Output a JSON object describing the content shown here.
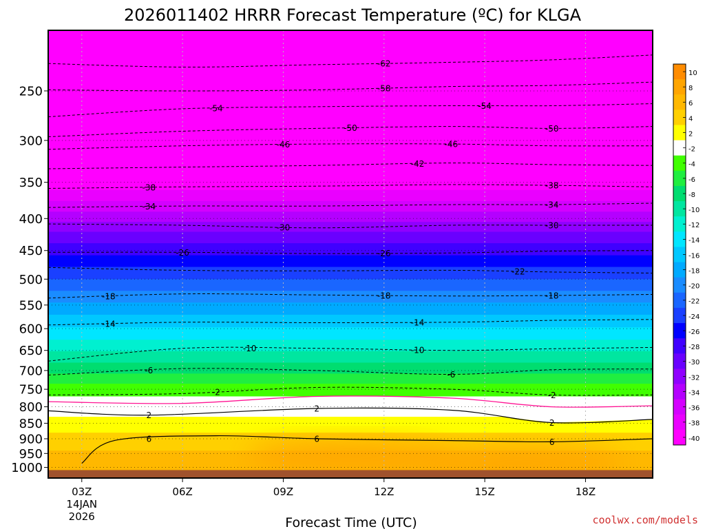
{
  "chart_data": {
    "type": "heatmap",
    "title": "2026011402 HRRR Forecast Temperature (ºC) for KLGA",
    "xlabel": "Forecast Time (UTC)",
    "ylabel": "",
    "credit": "coolwx.com/models",
    "x_ticks": [
      {
        "hour": 3,
        "lines": [
          "03Z",
          "14JAN",
          "2026"
        ]
      },
      {
        "hour": 6,
        "lines": [
          "06Z"
        ]
      },
      {
        "hour": 9,
        "lines": [
          "09Z"
        ]
      },
      {
        "hour": 12,
        "lines": [
          "12Z"
        ]
      },
      {
        "hour": 15,
        "lines": [
          "15Z"
        ]
      },
      {
        "hour": 18,
        "lines": [
          "18Z"
        ]
      }
    ],
    "xlim": [
      2,
      20
    ],
    "y_scale": "log",
    "ylim": [
      1040,
      200
    ],
    "y_ticks": [
      250,
      300,
      350,
      400,
      450,
      500,
      550,
      600,
      650,
      700,
      750,
      800,
      850,
      900,
      950,
      1000
    ],
    "ground_pressure": 1010,
    "colorbar": {
      "ticks": [
        "10",
        "8",
        "6",
        "4",
        "2",
        "-2",
        "-4",
        "-6",
        "-8",
        "-10",
        "-12",
        "-14",
        "-16",
        "-18",
        "-20",
        "-22",
        "-24",
        "-26",
        "-28",
        "-30",
        "-32",
        "-34",
        "-36",
        "-38",
        "-40"
      ],
      "colors": [
        "#ff8c00",
        "#ffa500",
        "#ffb800",
        "#ffd000",
        "#ffff00",
        "#ffffff",
        "#40ff00",
        "#20ee40",
        "#00dd70",
        "#00e6a0",
        "#00f0d0",
        "#00e6ff",
        "#00c8ff",
        "#00aaff",
        "#1a8cff",
        "#1a66ff",
        "#1a40ff",
        "#0000ff",
        "#4000ff",
        "#6a00ff",
        "#9000ff",
        "#b400ff",
        "#d400ff",
        "#ea00ff",
        "#ff00ff"
      ]
    },
    "temperature_bands": [
      {
        "p_top": 200,
        "p_bot": 360,
        "t": -40,
        "color": "#ff00ff"
      },
      {
        "p_top": 360,
        "p_bot": 375,
        "t": -38,
        "color": "#ea00ff"
      },
      {
        "p_top": 375,
        "p_bot": 390,
        "t": -36,
        "color": "#d400ff"
      },
      {
        "p_top": 390,
        "p_bot": 405,
        "t": -34,
        "color": "#b400ff"
      },
      {
        "p_top": 405,
        "p_bot": 420,
        "t": -32,
        "color": "#9000ff"
      },
      {
        "p_top": 420,
        "p_bot": 438,
        "t": -30,
        "color": "#6a00ff"
      },
      {
        "p_top": 438,
        "p_bot": 458,
        "t": -28,
        "color": "#4000ff"
      },
      {
        "p_top": 458,
        "p_bot": 478,
        "t": -26,
        "color": "#0000ff"
      },
      {
        "p_top": 478,
        "p_bot": 500,
        "t": -24,
        "color": "#1a40ff"
      },
      {
        "p_top": 500,
        "p_bot": 522,
        "t": -22,
        "color": "#1a66ff"
      },
      {
        "p_top": 522,
        "p_bot": 545,
        "t": -20,
        "color": "#1a8cff"
      },
      {
        "p_top": 545,
        "p_bot": 570,
        "t": -18,
        "color": "#00aaff"
      },
      {
        "p_top": 570,
        "p_bot": 597,
        "t": -16,
        "color": "#00c8ff"
      },
      {
        "p_top": 597,
        "p_bot": 625,
        "t": -14,
        "color": "#00e6ff"
      },
      {
        "p_top": 625,
        "p_bot": 652,
        "t": -12,
        "color": "#00f0d0"
      },
      {
        "p_top": 652,
        "p_bot": 680,
        "t": -10,
        "color": "#00e6a0"
      },
      {
        "p_top": 680,
        "p_bot": 708,
        "t": -8,
        "color": "#00dd70"
      },
      {
        "p_top": 708,
        "p_bot": 735,
        "t": -6,
        "color": "#20ee40"
      },
      {
        "p_top": 735,
        "p_bot": 770,
        "t": -4,
        "color": "#40ff00"
      },
      {
        "p_top": 770,
        "p_bot": 830,
        "t": 0,
        "color": "#ffffff"
      },
      {
        "p_top": 830,
        "p_bot": 880,
        "t": 2,
        "color": "#ffff00"
      },
      {
        "p_top": 880,
        "p_bot": 940,
        "t": 4,
        "color": "#ffd000"
      },
      {
        "p_top": 940,
        "p_bot": 1010,
        "t": 6,
        "color": "#ffb800"
      }
    ],
    "warm_pockets": [
      {
        "hour": 11,
        "p": 960,
        "t": 8,
        "color": "#ffa500"
      },
      {
        "hour": 16,
        "p": 985,
        "t": 8,
        "color": "#ffa500"
      }
    ],
    "ground_color": "#a0522d",
    "contours": [
      {
        "t": -62,
        "style": "dashed",
        "x": [
          2,
          6,
          10,
          14,
          17,
          20
        ],
        "p": [
          226,
          229,
          227,
          225,
          223,
          219
        ],
        "labels": [
          12
        ]
      },
      {
        "t": -58,
        "style": "dashed",
        "x": [
          2,
          6,
          10,
          14,
          17,
          20
        ],
        "p": [
          249,
          250,
          249,
          246,
          245,
          242
        ],
        "labels": [
          12
        ]
      },
      {
        "t": -54,
        "style": "dashed",
        "x": [
          2,
          6,
          10,
          14,
          17,
          20
        ],
        "p": [
          275,
          267,
          265,
          264,
          264,
          262
        ],
        "labels": [
          7,
          15
        ]
      },
      {
        "t": -50,
        "style": "dashed",
        "x": [
          2,
          6,
          10,
          14,
          17,
          20
        ],
        "p": [
          296,
          290,
          287,
          285,
          287,
          285
        ],
        "labels": [
          11,
          17
        ]
      },
      {
        "t": -46,
        "style": "dashed",
        "x": [
          2,
          6,
          10,
          14,
          17,
          20
        ],
        "p": [
          310,
          306,
          304,
          304,
          306,
          306
        ],
        "labels": [
          9,
          14
        ]
      },
      {
        "t": -42,
        "style": "dashed",
        "x": [
          2,
          6,
          10,
          14,
          17,
          20
        ],
        "p": [
          333,
          331,
          329,
          326,
          328,
          329
        ],
        "labels": [
          13
        ]
      },
      {
        "t": -38,
        "style": "dashed",
        "x": [
          2,
          6,
          10,
          14,
          17,
          20
        ],
        "p": [
          358,
          356,
          355,
          353,
          354,
          356
        ],
        "labels": [
          5,
          17
        ]
      },
      {
        "t": -34,
        "style": "dashed",
        "x": [
          2,
          6,
          10,
          14,
          17,
          20
        ],
        "p": [
          384,
          382,
          382,
          380,
          380,
          378
        ],
        "labels": [
          5,
          17
        ]
      },
      {
        "t": -30,
        "style": "dashed",
        "x": [
          2,
          6,
          10,
          14,
          17,
          20
        ],
        "p": [
          408,
          410,
          414,
          410,
          410,
          410
        ],
        "labels": [
          9,
          17
        ]
      },
      {
        "t": -26,
        "style": "dashed",
        "x": [
          2,
          6,
          10,
          14,
          17,
          20
        ],
        "p": [
          453,
          453,
          455,
          454,
          451,
          450
        ],
        "labels": [
          6,
          12
        ]
      },
      {
        "t": -22,
        "style": "dashed",
        "x": [
          2,
          6,
          10,
          14,
          17,
          20
        ],
        "p": [
          479,
          484,
          485,
          484,
          487,
          489
        ],
        "labels": [
          16
        ]
      },
      {
        "t": -18,
        "style": "dashed",
        "x": [
          2,
          6,
          10,
          14,
          17,
          20
        ],
        "p": [
          536,
          528,
          530,
          532,
          531,
          529
        ],
        "labels": [
          3.8,
          12,
          17
        ]
      },
      {
        "t": -14,
        "style": "dashed",
        "x": [
          2,
          6,
          10,
          14,
          17,
          20
        ],
        "p": [
          592,
          586,
          587,
          586,
          582,
          580
        ],
        "labels": [
          3.8,
          13
        ]
      },
      {
        "t": -10,
        "style": "dashed",
        "x": [
          2,
          6,
          10,
          14,
          17,
          20
        ],
        "p": [
          676,
          645,
          645,
          650,
          646,
          643
        ],
        "labels": [
          8,
          13
        ]
      },
      {
        "t": -6,
        "style": "dashed",
        "x": [
          2,
          6,
          10,
          14,
          17,
          20
        ],
        "p": [
          712,
          695,
          700,
          710,
          698,
          696
        ],
        "labels": [
          5,
          14
        ]
      },
      {
        "t": -2,
        "style": "dashed",
        "x": [
          2,
          6,
          10,
          14,
          17,
          20
        ],
        "p": [
          766,
          762,
          745,
          750,
          766,
          766
        ],
        "labels": [
          7,
          17
        ]
      },
      {
        "t": 0,
        "style": "magenta",
        "x": [
          2,
          6,
          10,
          14,
          17,
          20
        ],
        "p": [
          785,
          790,
          770,
          775,
          800,
          797
        ],
        "labels": []
      },
      {
        "t": 2,
        "style": "solid",
        "x": [
          2,
          5,
          10,
          14,
          17,
          20
        ],
        "p": [
          812,
          825,
          805,
          810,
          848,
          838
        ],
        "labels": [
          5,
          10,
          17
        ]
      },
      {
        "t": 6,
        "style": "solid",
        "x": [
          3,
          4,
          7,
          10,
          14,
          17,
          20
        ],
        "p": [
          985,
          905,
          890,
          900,
          906,
          910,
          900
        ],
        "labels": [
          5,
          10,
          17
        ]
      }
    ]
  }
}
